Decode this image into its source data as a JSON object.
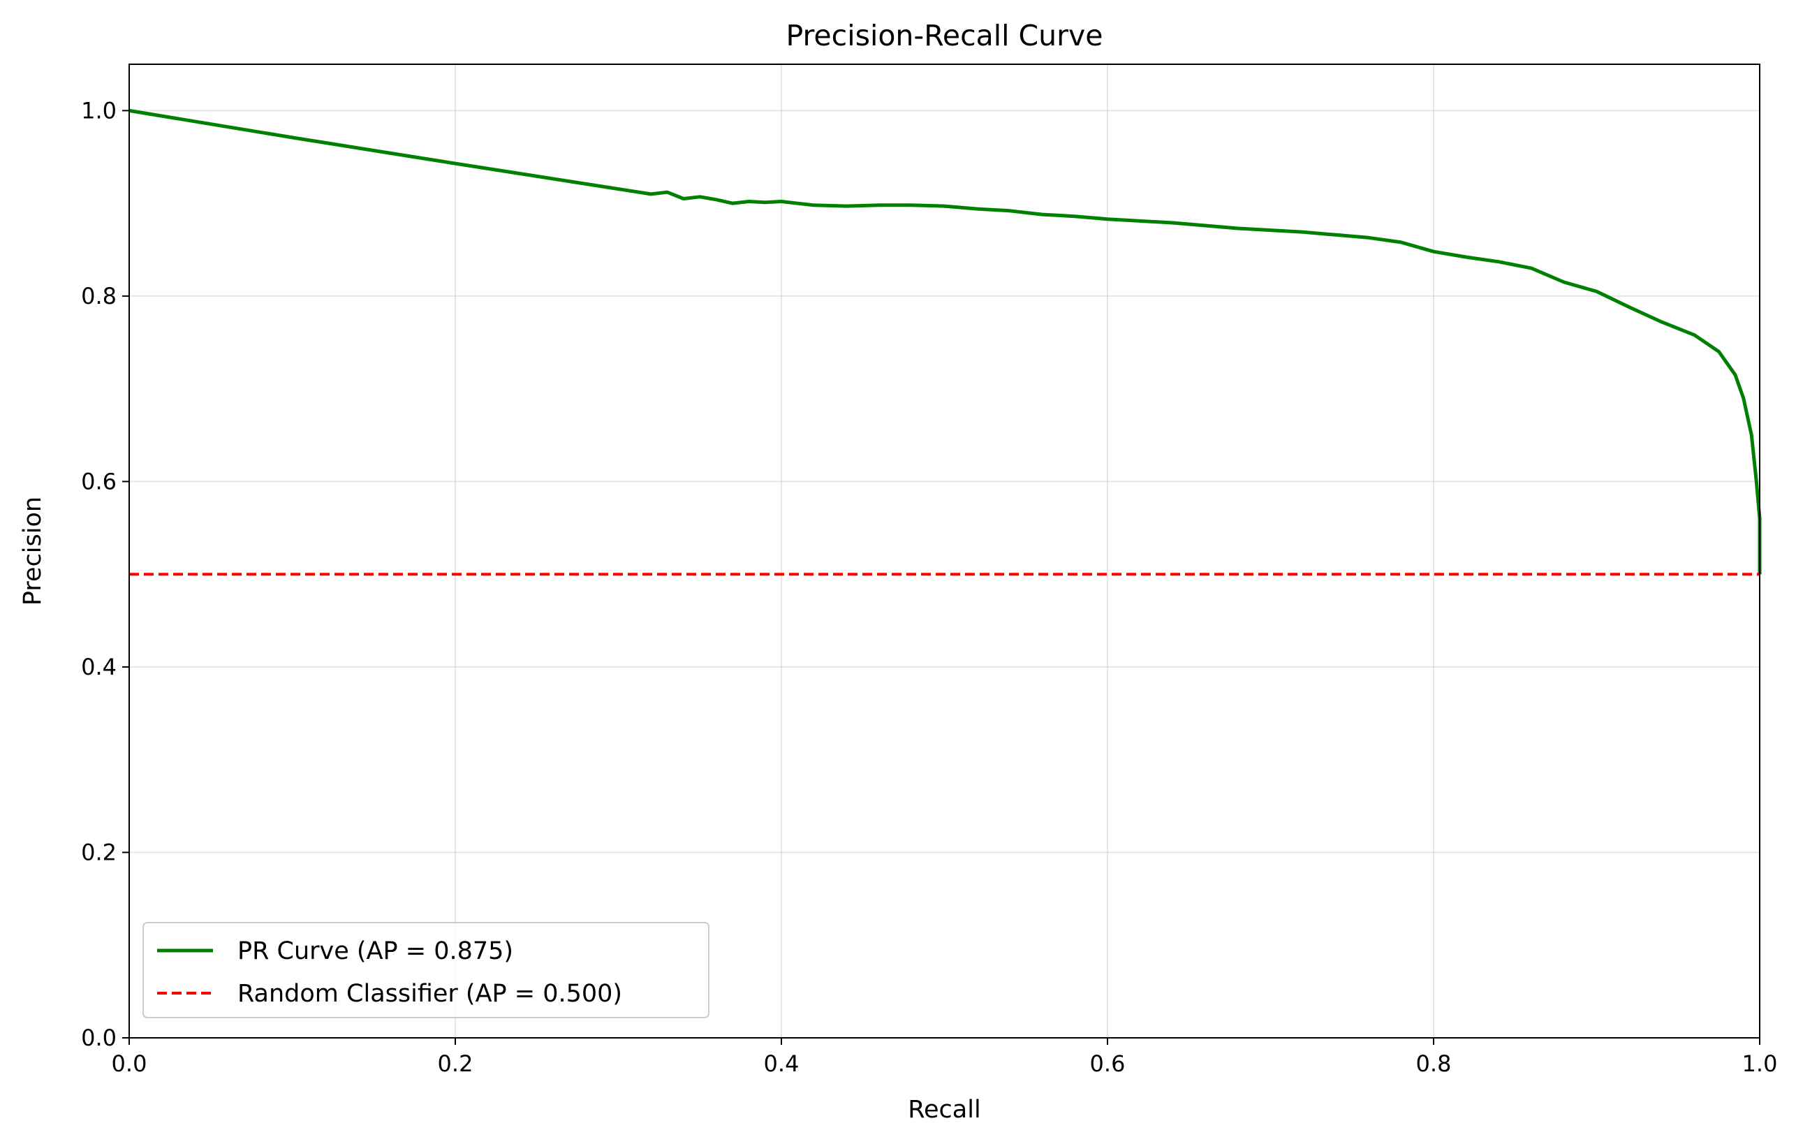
{
  "chart_data": {
    "type": "line",
    "title": "Precision-Recall Curve",
    "xlabel": "Recall",
    "ylabel": "Precision",
    "xlim": [
      0.0,
      1.0
    ],
    "ylim": [
      0.0,
      1.05
    ],
    "xticks": [
      0.0,
      0.2,
      0.4,
      0.6,
      0.8,
      1.0
    ],
    "yticks": [
      0.0,
      0.2,
      0.4,
      0.6,
      0.8,
      1.0
    ],
    "xtick_labels": [
      "0.0",
      "0.2",
      "0.4",
      "0.6",
      "0.8",
      "1.0"
    ],
    "ytick_labels": [
      "0.0",
      "0.2",
      "0.4",
      "0.6",
      "0.8",
      "1.0"
    ],
    "grid": true,
    "legend_position": "lower-left",
    "series": [
      {
        "name": "PR Curve (AP = 0.875)",
        "color": "#008000",
        "style": "solid",
        "x": [
          0.0,
          0.1,
          0.2,
          0.32,
          0.33,
          0.34,
          0.35,
          0.36,
          0.37,
          0.38,
          0.39,
          0.4,
          0.42,
          0.44,
          0.46,
          0.48,
          0.5,
          0.52,
          0.54,
          0.56,
          0.58,
          0.6,
          0.62,
          0.64,
          0.66,
          0.68,
          0.7,
          0.72,
          0.74,
          0.76,
          0.78,
          0.8,
          0.82,
          0.84,
          0.86,
          0.88,
          0.9,
          0.92,
          0.94,
          0.96,
          0.975,
          0.985,
          0.99,
          0.995,
          0.998,
          1.0,
          1.0
        ],
        "y": [
          1.0,
          0.971,
          0.943,
          0.91,
          0.912,
          0.905,
          0.907,
          0.904,
          0.9,
          0.902,
          0.901,
          0.902,
          0.898,
          0.897,
          0.898,
          0.898,
          0.897,
          0.894,
          0.892,
          0.888,
          0.886,
          0.883,
          0.881,
          0.879,
          0.876,
          0.873,
          0.871,
          0.869,
          0.866,
          0.863,
          0.858,
          0.848,
          0.842,
          0.837,
          0.83,
          0.815,
          0.805,
          0.788,
          0.772,
          0.758,
          0.74,
          0.715,
          0.69,
          0.65,
          0.6,
          0.56,
          0.5
        ]
      },
      {
        "name": "Random Classifier (AP = 0.500)",
        "color": "#ff0000",
        "style": "dashed",
        "x": [
          0.0,
          1.0
        ],
        "y": [
          0.5,
          0.5
        ]
      }
    ]
  }
}
